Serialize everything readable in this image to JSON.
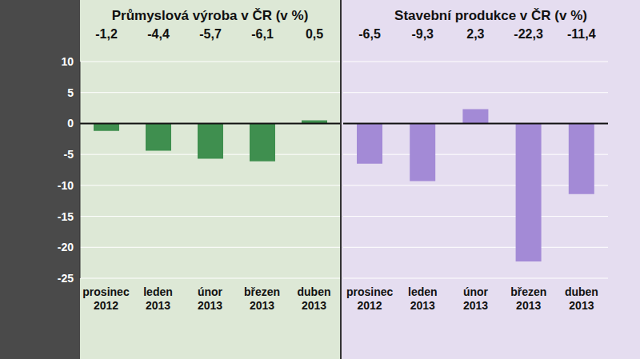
{
  "chart_data": [
    {
      "type": "bar",
      "title": "Průmyslová výroba v ČR (v %)",
      "categories": [
        "prosinec 2012",
        "leden 2013",
        "únor 2013",
        "březen 2013",
        "duben 2013"
      ],
      "values": [
        -1.2,
        -4.4,
        -5.7,
        -6.1,
        0.5
      ],
      "value_labels": [
        "-1,2",
        "-4,4",
        "-5,7",
        "-6,1",
        "0,5"
      ],
      "data_labels": true,
      "color": "#3f8f4f",
      "ylim": [
        -25,
        10
      ],
      "yticks": [
        -25,
        -20,
        -15,
        -10,
        -5,
        0,
        5,
        10
      ],
      "grid": true
    },
    {
      "type": "bar",
      "title": "Stavební produkce v ČR (v %)",
      "categories": [
        "prosinec 2012",
        "leden 2013",
        "únor 2013",
        "březen 2013",
        "duben 2013"
      ],
      "values": [
        -6.5,
        -9.3,
        2.3,
        -22.3,
        -11.4
      ],
      "value_labels": [
        "-6,5",
        "-9,3",
        "2,3",
        "-22,3",
        "-11,4"
      ],
      "data_labels": true,
      "color": "#a38ad6",
      "ylim": [
        -25,
        10
      ],
      "yticks": [
        -25,
        -20,
        -15,
        -10,
        -5,
        0,
        5,
        10
      ],
      "grid": true,
      "tick_labels": "x"
    }
  ]
}
